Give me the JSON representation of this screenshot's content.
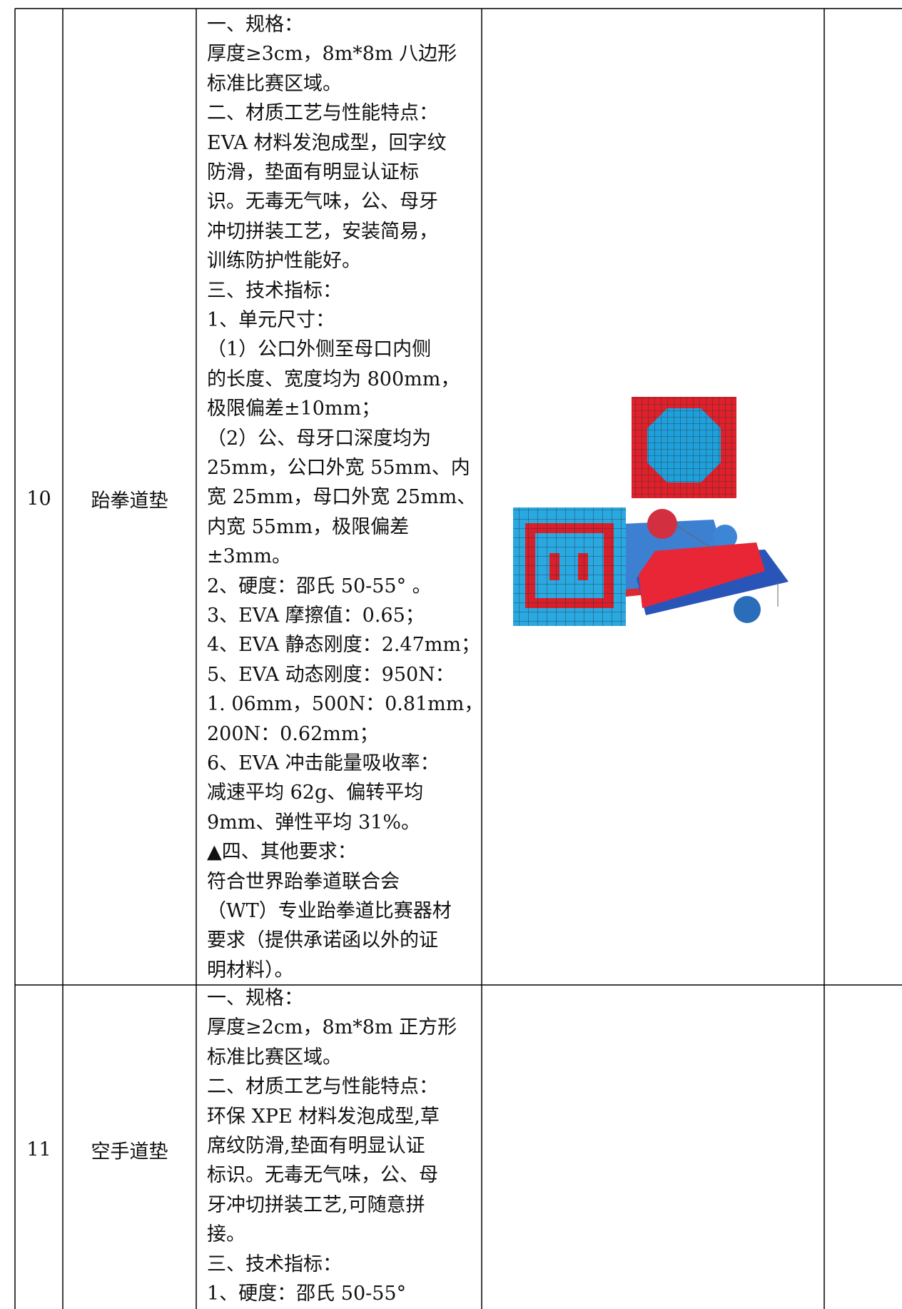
{
  "table": {
    "rows": [
      {
        "number": "10",
        "name": "跆拳道垫",
        "lines": [
          "一、规格：",
          "厚度≥3cm，8m*8m 八边形",
          "标准比赛区域。",
          "二、材质工艺与性能特点：",
          "EVA 材料发泡成型，回字纹",
          "防滑，垫面有明显认证标",
          "识。无毒无气味，公、母牙",
          "冲切拼装工艺，安装简易，",
          "训练防护性能好。",
          "三、技术指标：",
          "1、单元尺寸：",
          "（1）公口外侧至母口内侧",
          "的长度、宽度均为 800mm，",
          "极限偏差±10mm；",
          "（2）公、母牙口深度均为",
          "25mm，公口外宽 55mm、内",
          "宽 25mm，母口外宽 25mm、",
          "内宽 55mm，极限偏差",
          "±3mm。",
          "2、硬度：邵氏 50-55°  。",
          "3、EVA 摩擦值：0.65；",
          "4、EVA 静态刚度：2.47mm；",
          "5、EVA 动态刚度：950N：",
          "1. 06mm，500N：0.81mm，",
          "200N：0.62mm；",
          "6、EVA 冲击能量吸收率：",
          "减速平均 62g、偏转平均",
          "9mm、弹性平均 31%。",
          "▲四、其他要求：",
          "符合世界跆拳道联合会",
          "（WT）专业跆拳道比赛器材",
          "要求（提供承诺函以外的证",
          "明材料）。"
        ]
      },
      {
        "number": "11",
        "name": "空手道垫",
        "lines": [
          "一、规格：",
          "厚度≥2cm，8m*8m 正方形",
          "标准比赛区域。",
          "二、材质工艺与性能特点：",
          "环保 XPE 材料发泡成型,草",
          "席纹防滑,垫面有明显认证",
          "标识。无毒无气味，公、母",
          "牙冲切拼装工艺,可随意拼",
          "接。",
          "三、技术指标：",
          "1、硬度：邵氏 50-55°"
        ]
      }
    ]
  }
}
